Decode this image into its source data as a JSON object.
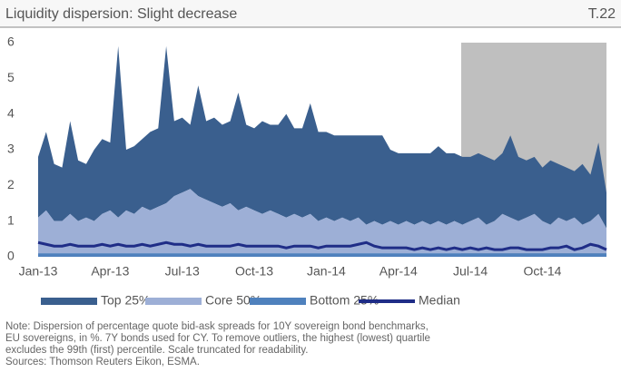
{
  "chart_data": {
    "type": "stacked_area",
    "title": "Liquidity dispersion: Slight decrease",
    "label": "T.22",
    "categories": [
      "Jan-13",
      null,
      null,
      null,
      null,
      null,
      null,
      null,
      null,
      "Apr-13",
      null,
      null,
      null,
      null,
      null,
      null,
      null,
      null,
      "Jul-13",
      null,
      null,
      null,
      null,
      null,
      null,
      null,
      null,
      "Oct-13",
      null,
      null,
      null,
      null,
      null,
      null,
      null,
      null,
      "Jan-14",
      null,
      null,
      null,
      null,
      null,
      null,
      null,
      null,
      "Apr-14",
      null,
      null,
      null,
      null,
      null,
      null,
      null,
      null,
      "Jul-14",
      null,
      null,
      null,
      null,
      null,
      null,
      null,
      null,
      "Oct-14",
      null,
      null,
      null,
      null,
      null,
      null,
      null,
      null
    ],
    "series": [
      {
        "name": "Top 25%",
        "kind": "area",
        "color": "#3a5f8e",
        "values": [
          1.7,
          2.2,
          1.6,
          1.5,
          2.6,
          1.7,
          1.5,
          2.0,
          2.1,
          1.9,
          4.8,
          1.7,
          1.9,
          1.9,
          2.2,
          2.2,
          4.4,
          2.1,
          2.1,
          1.8,
          3.1,
          2.2,
          2.4,
          2.3,
          2.3,
          3.3,
          2.3,
          2.3,
          2.6,
          2.4,
          2.5,
          2.9,
          2.4,
          2.5,
          3.1,
          2.5,
          2.4,
          2.4,
          2.3,
          2.4,
          2.3,
          2.5,
          2.4,
          2.5,
          2.0,
          2.0,
          1.9,
          2.0,
          1.9,
          2.0,
          2.1,
          2.0,
          1.9,
          1.9,
          1.8,
          1.8,
          1.9,
          1.7,
          1.7,
          2.3,
          1.8,
          1.6,
          1.6,
          1.5,
          1.8,
          1.5,
          1.5,
          1.3,
          1.7,
          1.3,
          2.0,
          1.0
        ]
      },
      {
        "name": "Core 50%",
        "kind": "area",
        "color": "#9dafd6",
        "values": [
          1.0,
          1.2,
          0.9,
          0.9,
          1.1,
          0.9,
          1.0,
          0.9,
          1.1,
          1.2,
          1.0,
          1.2,
          1.1,
          1.3,
          1.2,
          1.3,
          1.4,
          1.6,
          1.7,
          1.8,
          1.6,
          1.5,
          1.4,
          1.3,
          1.4,
          1.2,
          1.3,
          1.2,
          1.1,
          1.2,
          1.1,
          1.0,
          1.1,
          1.0,
          1.1,
          0.9,
          1.0,
          0.9,
          1.0,
          0.9,
          1.0,
          0.8,
          0.9,
          0.8,
          0.9,
          0.8,
          0.9,
          0.8,
          0.9,
          0.8,
          0.9,
          0.8,
          0.9,
          0.8,
          0.9,
          1.0,
          0.8,
          0.9,
          1.1,
          1.0,
          0.9,
          1.0,
          1.1,
          0.9,
          0.8,
          1.0,
          0.9,
          1.0,
          0.8,
          0.9,
          1.1,
          0.7
        ]
      },
      {
        "name": "Bottom 25%",
        "kind": "area",
        "color": "#4f81bd",
        "values": [
          0.1,
          0.1,
          0.1,
          0.1,
          0.1,
          0.1,
          0.1,
          0.1,
          0.1,
          0.1,
          0.1,
          0.1,
          0.1,
          0.1,
          0.1,
          0.1,
          0.1,
          0.1,
          0.1,
          0.1,
          0.1,
          0.1,
          0.1,
          0.1,
          0.1,
          0.1,
          0.1,
          0.1,
          0.1,
          0.1,
          0.1,
          0.1,
          0.1,
          0.1,
          0.1,
          0.1,
          0.1,
          0.1,
          0.1,
          0.1,
          0.1,
          0.1,
          0.1,
          0.1,
          0.1,
          0.1,
          0.1,
          0.1,
          0.1,
          0.1,
          0.1,
          0.1,
          0.1,
          0.1,
          0.1,
          0.1,
          0.1,
          0.1,
          0.1,
          0.1,
          0.1,
          0.1,
          0.1,
          0.1,
          0.1,
          0.1,
          0.1,
          0.1,
          0.1,
          0.1,
          0.1,
          0.1
        ]
      },
      {
        "name": "Median",
        "kind": "line",
        "color": "#1f2d87",
        "values": [
          0.4,
          0.35,
          0.3,
          0.3,
          0.35,
          0.3,
          0.3,
          0.3,
          0.35,
          0.3,
          0.35,
          0.3,
          0.3,
          0.35,
          0.3,
          0.35,
          0.4,
          0.35,
          0.35,
          0.3,
          0.35,
          0.3,
          0.3,
          0.3,
          0.3,
          0.35,
          0.3,
          0.3,
          0.3,
          0.3,
          0.3,
          0.25,
          0.3,
          0.3,
          0.3,
          0.25,
          0.3,
          0.3,
          0.3,
          0.3,
          0.35,
          0.4,
          0.3,
          0.25,
          0.25,
          0.25,
          0.25,
          0.2,
          0.25,
          0.2,
          0.25,
          0.2,
          0.25,
          0.2,
          0.25,
          0.2,
          0.25,
          0.2,
          0.2,
          0.25,
          0.25,
          0.2,
          0.2,
          0.2,
          0.25,
          0.25,
          0.3,
          0.2,
          0.25,
          0.35,
          0.3,
          0.2
        ]
      }
    ],
    "ylim": [
      0,
      6
    ],
    "yticks": [
      0,
      1,
      2,
      3,
      4,
      5,
      6
    ],
    "grid": false,
    "legend": "bottom",
    "notes": [
      "Note: Dispersion of percentage quote bid-ask spreads for 10Y sovereign bond benchmarks,",
      "EU sovereigns, in %. 7Y bonds used for CY. To remove outliers, the highest (lowest) quartile",
      "excludes the 99th (first) percentile. Scale truncated for readability.",
      "Sources: Thomson Reuters Eikon, ESMA."
    ]
  }
}
